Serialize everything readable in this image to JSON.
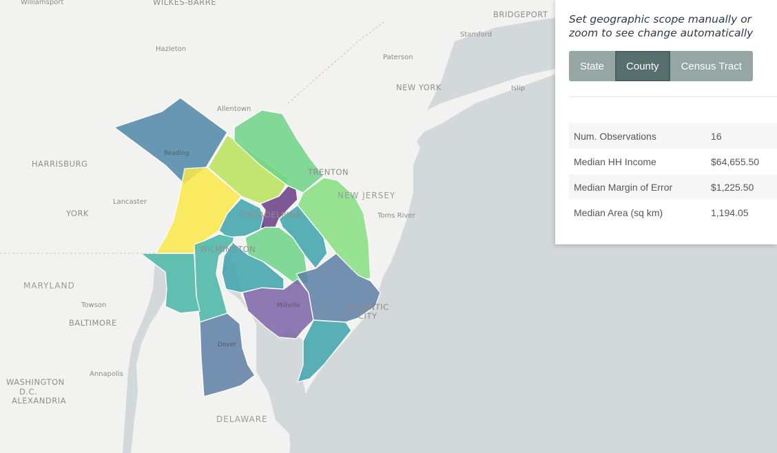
{
  "map": {
    "cities": [
      {
        "id": "williamsport",
        "name": "Williamsport"
      },
      {
        "id": "wilkes-barre",
        "name": "WILKES-BARRE"
      },
      {
        "id": "hazleton",
        "name": "Hazleton"
      },
      {
        "id": "allentown",
        "name": "Allentown"
      },
      {
        "id": "reading",
        "name": "Reading"
      },
      {
        "id": "harrisburg",
        "name": "HARRISBURG"
      },
      {
        "id": "lancaster",
        "name": "Lancaster"
      },
      {
        "id": "york",
        "name": "YORK"
      },
      {
        "id": "trenton",
        "name": "TRENTON"
      },
      {
        "id": "philadelphia",
        "name": "PHILADELPHIA"
      },
      {
        "id": "wilmington",
        "name": "WILMINGTON"
      },
      {
        "id": "millville",
        "name": "Millville"
      },
      {
        "id": "atlantic-city-1",
        "name": "ATLANTIC"
      },
      {
        "id": "atlantic-city-2",
        "name": "CITY"
      },
      {
        "id": "dover",
        "name": "Dover"
      },
      {
        "id": "towson",
        "name": "Towson"
      },
      {
        "id": "baltimore",
        "name": "BALTIMORE"
      },
      {
        "id": "annapolis",
        "name": "Annapolis"
      },
      {
        "id": "washington-1",
        "name": "WASHINGTON"
      },
      {
        "id": "washington-2",
        "name": "D.C."
      },
      {
        "id": "alexandria",
        "name": "ALEXANDRIA"
      },
      {
        "id": "bridgeport",
        "name": "BRIDGEPORT"
      },
      {
        "id": "stamford",
        "name": "Stamford"
      },
      {
        "id": "paterson",
        "name": "Paterson"
      },
      {
        "id": "new-york",
        "name": "NEW YORK"
      },
      {
        "id": "islip",
        "name": "Islip"
      },
      {
        "id": "toms-river",
        "name": "Toms River"
      }
    ],
    "states": [
      {
        "id": "new-jersey",
        "name": "NEW JERSEY"
      },
      {
        "id": "maryland",
        "name": "MARYLAND"
      },
      {
        "id": "delaware",
        "name": "DELAWARE"
      }
    ],
    "colors": {
      "land": "#f2f2f0",
      "water": "#d3d8da",
      "c_purple": "#6a3d86",
      "c_violet": "#7e65a8",
      "c_slate": "#5e7fa6",
      "c_blue": "#4f88a8",
      "c_teal": "#3ea4ad",
      "c_teal2": "#48b7a8",
      "c_green": "#6fd488",
      "c_green2": "#88e080",
      "c_lime": "#b9e35a",
      "c_yellow": "#fce94a"
    }
  },
  "panel": {
    "title": "Set geographic scope manually or zoom to see change automatically",
    "scope_buttons": [
      {
        "label": "State",
        "active": false
      },
      {
        "label": "County",
        "active": true
      },
      {
        "label": "Census Tract",
        "active": false
      }
    ],
    "stats": [
      {
        "label": "Num. Observations",
        "value": "16"
      },
      {
        "label": "Median HH Income",
        "value": "$64,655.50"
      },
      {
        "label": "Median Margin of Error",
        "value": "$1,225.50"
      },
      {
        "label": "Median Area (sq km)",
        "value": "1,194.05"
      }
    ]
  }
}
